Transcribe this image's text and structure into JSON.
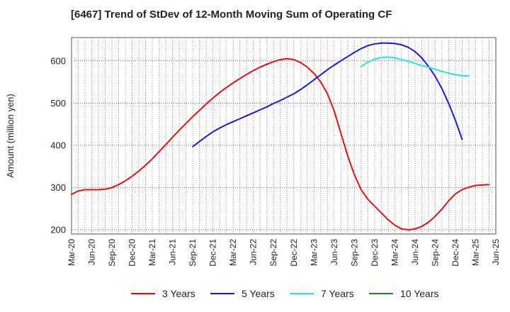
{
  "chart_data": {
    "type": "line",
    "title": "[6467]  Trend of StDev of 12-Month Moving Sum of Operating CF",
    "ylabel": "Amount (million yen)",
    "xlabel": "",
    "ylim": [
      190,
      655
    ],
    "yticks": [
      200,
      300,
      400,
      500,
      600
    ],
    "x_tick_labels": [
      "Mar-20",
      "Jun-20",
      "Sep-20",
      "Dec-20",
      "Mar-21",
      "Jun-21",
      "Sep-21",
      "Dec-21",
      "Mar-22",
      "Jun-22",
      "Sep-22",
      "Dec-22",
      "Mar-23",
      "Jun-23",
      "Sep-23",
      "Dec-23",
      "Mar-24",
      "Jun-24",
      "Sep-24",
      "Dec-24",
      "Mar-25",
      "Jun-25"
    ],
    "grid": true,
    "legend_position": "bottom",
    "series": [
      {
        "name": "3 Years",
        "color": "#e8100d",
        "start_index": 0,
        "values": [
          284,
          292,
          295,
          295,
          295,
          296,
          300,
          307,
          316,
          327,
          339,
          353,
          368,
          385,
          402,
          419,
          436,
          452,
          468,
          483,
          498,
          512,
          525,
          537,
          548,
          558,
          568,
          577,
          585,
          592,
          598,
          603,
          605,
          603,
          596,
          585,
          570,
          550,
          522,
          481,
          428,
          375,
          330,
          295,
          272,
          256,
          240,
          224,
          211,
          202,
          200,
          202,
          208,
          218,
          232,
          249,
          269,
          285,
          295,
          301,
          305,
          306,
          307
        ]
      },
      {
        "name": "5 Years",
        "color": "#1a1adf",
        "start_index": 18,
        "values": [
          397,
          409,
          421,
          432,
          441,
          449,
          456,
          463,
          470,
          477,
          484,
          491,
          499,
          506,
          514,
          522,
          532,
          543,
          555,
          567,
          579,
          590,
          600,
          610,
          620,
          629,
          636,
          640,
          642,
          642,
          641,
          638,
          632,
          622,
          607,
          587,
          563,
          534,
          499,
          459,
          414
        ]
      },
      {
        "name": "7 Years",
        "color": "#22e6e8",
        "start_index": 43,
        "values": [
          587,
          597,
          604,
          608,
          609,
          607,
          603,
          599,
          594,
          589,
          585,
          580,
          575,
          571,
          567,
          565,
          564
        ]
      },
      {
        "name": "10 Years",
        "color": "#1f8a1f",
        "start_index": 0,
        "values": []
      }
    ]
  }
}
